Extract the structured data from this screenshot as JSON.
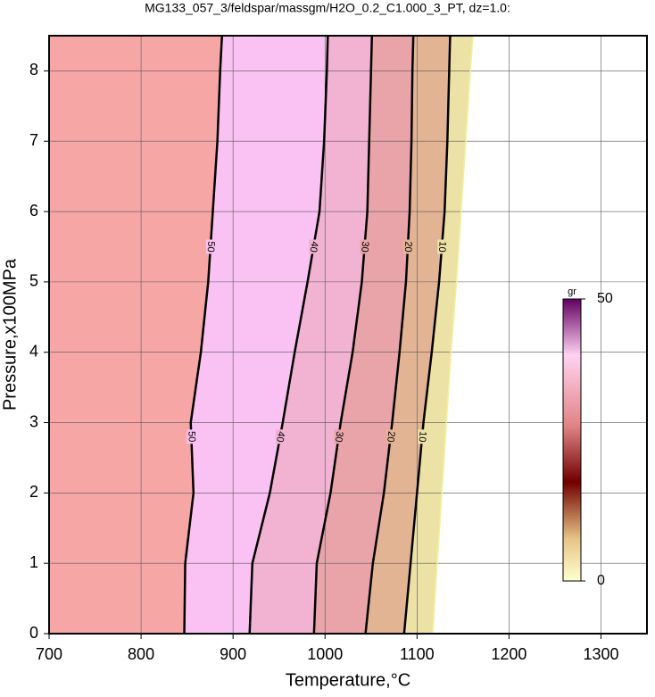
{
  "chart_data": {
    "type": "contour",
    "title": "MG133_057_3/feldspar/massgm/H2O_0.2_C1.000_3_PT, dz=1.0:",
    "x_label": "Temperature,°C",
    "y_label": "Pressure,x100MPa",
    "xlim": [
      700,
      1350
    ],
    "xticks": [
      700,
      800,
      900,
      1000,
      1100,
      1200,
      1300
    ],
    "ylim": [
      0,
      8.5
    ],
    "yticks": [
      0,
      1,
      2,
      3,
      4,
      5,
      6,
      7,
      8
    ],
    "grid": true,
    "pressure": [
      0,
      1,
      2,
      3,
      4,
      5,
      6,
      7,
      8,
      8.5
    ],
    "outside_color": "#f7a6a6",
    "contours": [
      {
        "level": 50,
        "color": "#000000",
        "band_color": "#f9c2f2",
        "temperature": [
          847,
          848,
          857,
          854,
          865,
          873,
          878,
          883,
          886,
          888
        ]
      },
      {
        "level": 40,
        "color": "#000000",
        "band_color": "#f2b2d2",
        "temperature": [
          918,
          921,
          940,
          954,
          967,
          981,
          994,
          999,
          1002,
          1003
        ]
      },
      {
        "level": 30,
        "color": "#000000",
        "band_color": "#e9a4aa",
        "temperature": [
          988,
          991,
          1006,
          1017,
          1030,
          1040,
          1046,
          1048,
          1050,
          1051
        ]
      },
      {
        "level": 20,
        "color": "#000000",
        "band_color": "#e3b494",
        "temperature": [
          1044,
          1052,
          1064,
          1073,
          1081,
          1088,
          1092,
          1094,
          1095,
          1096
        ]
      },
      {
        "level": 10,
        "color": "#000000",
        "band_color": "#ece2a6",
        "temperature": [
          1086,
          1093,
          1100,
          1107,
          1116,
          1124,
          1130,
          1133,
          1135,
          1136
        ]
      },
      {
        "level": 0,
        "color": "#f2f29a",
        "temperature": [
          1117,
          1122,
          1127,
          1132,
          1137,
          1143,
          1148,
          1153,
          1158,
          1161
        ]
      }
    ],
    "colorbar": {
      "label": "gr",
      "lim": [
        0,
        50
      ],
      "ticks": [
        0,
        50
      ]
    }
  }
}
